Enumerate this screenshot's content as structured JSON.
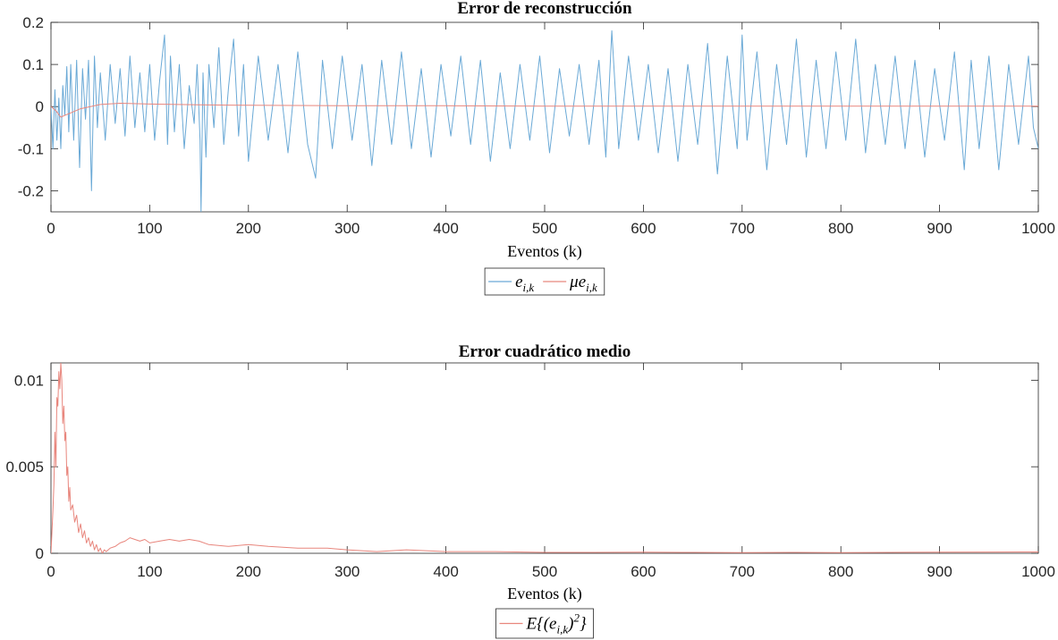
{
  "chart_data": [
    {
      "type": "line",
      "title": "Error de reconstrucción",
      "xlabel": "Eventos (k)",
      "ylabel": "",
      "xlim": [
        0,
        1000
      ],
      "ylim": [
        -0.25,
        0.2
      ],
      "xticks": [
        0,
        100,
        200,
        300,
        400,
        500,
        600,
        700,
        800,
        900,
        1000
      ],
      "yticks": [
        0.2,
        0.1,
        0,
        -0.1,
        -0.2
      ],
      "ytick_labels": [
        "0.2",
        "0.1",
        "0",
        "-0.1",
        "-0.2"
      ],
      "grid": false,
      "legend_position": "bottom-center",
      "series": [
        {
          "name": "e_{i,k}",
          "legend_main": "e",
          "legend_sub": "i,k",
          "color": "#6aa9d6",
          "description": "noisy error signal between about -0.17 and 0.18, single spike to -0.25 near k=152",
          "x": [
            0,
            2,
            4,
            6,
            8,
            10,
            12,
            14,
            16,
            18,
            20,
            23,
            26,
            29,
            32,
            35,
            38,
            41,
            44,
            47,
            50,
            55,
            60,
            65,
            70,
            75,
            80,
            85,
            90,
            95,
            100,
            105,
            110,
            115,
            118,
            121,
            125,
            130,
            135,
            140,
            145,
            148,
            151,
            152,
            154,
            157,
            160,
            165,
            170,
            175,
            180,
            185,
            190,
            195,
            200,
            210,
            220,
            230,
            240,
            250,
            260,
            268,
            275,
            285,
            295,
            305,
            315,
            325,
            335,
            345,
            355,
            365,
            375,
            385,
            395,
            405,
            415,
            425,
            435,
            445,
            455,
            465,
            475,
            485,
            495,
            505,
            515,
            525,
            535,
            545,
            555,
            562,
            568,
            575,
            585,
            595,
            605,
            615,
            625,
            635,
            645,
            655,
            665,
            675,
            685,
            695,
            700,
            705,
            715,
            725,
            735,
            745,
            755,
            765,
            775,
            785,
            795,
            805,
            815,
            825,
            835,
            845,
            855,
            865,
            875,
            885,
            895,
            905,
            915,
            925,
            932,
            940,
            950,
            960,
            970,
            980,
            990,
            995,
            1000
          ],
          "y": [
            0.0,
            -0.1,
            0.04,
            -0.08,
            0.02,
            -0.1,
            0.05,
            -0.02,
            0.095,
            -0.06,
            0.1,
            -0.08,
            0.11,
            -0.145,
            0.09,
            -0.03,
            0.11,
            -0.2,
            0.12,
            -0.05,
            0.08,
            -0.08,
            0.1,
            -0.04,
            0.09,
            -0.07,
            0.12,
            -0.05,
            0.08,
            -0.06,
            0.1,
            -0.08,
            0.06,
            0.17,
            -0.09,
            0.12,
            -0.06,
            0.1,
            -0.1,
            0.05,
            -0.04,
            0.1,
            -0.08,
            -0.25,
            0.08,
            -0.12,
            0.1,
            -0.05,
            0.14,
            -0.09,
            0.05,
            0.16,
            -0.07,
            0.1,
            -0.13,
            0.12,
            -0.08,
            0.1,
            -0.11,
            0.13,
            -0.09,
            -0.17,
            0.11,
            -0.1,
            0.12,
            -0.08,
            0.1,
            -0.14,
            0.11,
            -0.09,
            0.13,
            -0.1,
            0.09,
            -0.12,
            0.1,
            -0.07,
            0.12,
            -0.09,
            0.11,
            -0.13,
            0.08,
            -0.1,
            0.1,
            -0.08,
            0.12,
            -0.11,
            0.09,
            -0.07,
            0.1,
            -0.09,
            0.11,
            -0.12,
            0.18,
            -0.1,
            0.12,
            -0.08,
            0.1,
            -0.11,
            0.09,
            -0.13,
            0.1,
            -0.09,
            0.15,
            -0.16,
            0.12,
            -0.1,
            0.17,
            -0.08,
            0.13,
            -0.15,
            0.1,
            -0.09,
            0.16,
            -0.12,
            0.11,
            -0.1,
            0.13,
            -0.08,
            0.16,
            -0.11,
            0.1,
            -0.09,
            0.12,
            -0.1,
            0.11,
            -0.12,
            0.09,
            -0.08,
            0.13,
            -0.15,
            0.11,
            -0.1,
            0.12,
            -0.15,
            0.1,
            -0.09,
            0.12,
            -0.05,
            -0.1
          ]
        },
        {
          "name": "μe_{i,k}",
          "legend_main": "μe",
          "legend_sub": "i,k",
          "color": "#e8867d",
          "x": [
            0,
            5,
            10,
            15,
            20,
            25,
            30,
            40,
            50,
            70,
            100,
            150,
            200,
            300,
            400,
            500,
            600,
            700,
            800,
            900,
            1000
          ],
          "y": [
            0.0,
            -0.01,
            -0.025,
            -0.02,
            -0.015,
            -0.01,
            -0.005,
            0.0,
            0.005,
            0.008,
            0.006,
            0.004,
            0.003,
            0.002,
            0.002,
            0.001,
            0.001,
            0.001,
            0.001,
            0.001,
            0.001
          ]
        }
      ]
    },
    {
      "type": "line",
      "title": "Error cuadrático medio",
      "xlabel": "Eventos (k)",
      "ylabel": "",
      "xlim": [
        0,
        1000
      ],
      "ylim": [
        0,
        0.011
      ],
      "xticks": [
        0,
        100,
        200,
        300,
        400,
        500,
        600,
        700,
        800,
        900,
        1000
      ],
      "yticks": [
        0.01,
        0.005,
        0
      ],
      "ytick_labels": [
        "0.01",
        "0.005",
        "0"
      ],
      "grid": false,
      "legend_position": "bottom-center",
      "series": [
        {
          "name": "E{(e_{i,k})^2}",
          "legend_main": "E{(e",
          "legend_sub": "i,k",
          "legend_tail": ")",
          "legend_sup": "2",
          "legend_end": "}",
          "color": "#e8867d",
          "x": [
            0,
            2,
            3,
            4,
            5,
            6,
            7,
            8,
            9,
            10,
            11,
            12,
            13,
            14,
            15,
            16,
            17,
            18,
            19,
            20,
            22,
            24,
            26,
            28,
            30,
            32,
            34,
            36,
            38,
            40,
            42,
            44,
            46,
            48,
            50,
            52,
            54,
            56,
            58,
            60,
            65,
            70,
            75,
            80,
            85,
            90,
            95,
            100,
            110,
            120,
            130,
            140,
            150,
            160,
            180,
            200,
            220,
            250,
            280,
            300,
            330,
            360,
            400,
            450,
            500,
            550,
            600,
            650,
            700,
            750,
            800,
            850,
            900,
            950,
            1000
          ],
          "y": [
            0,
            0.0025,
            0.004,
            0.007,
            0.005,
            0.009,
            0.0085,
            0.0105,
            0.0095,
            0.011,
            0.01,
            0.0075,
            0.0085,
            0.0065,
            0.007,
            0.0045,
            0.005,
            0.003,
            0.0038,
            0.0025,
            0.0028,
            0.0018,
            0.0022,
            0.0012,
            0.0017,
            0.0009,
            0.0013,
            0.0006,
            0.0009,
            0.0004,
            0.0007,
            0.0002,
            0.0005,
            0.0001,
            0.0003,
            0.0,
            0.0002,
            0.0001,
            0.0002,
            0.0003,
            0.0004,
            0.0006,
            0.0007,
            0.0009,
            0.0008,
            0.0007,
            0.0008,
            0.0006,
            0.0007,
            0.0008,
            0.0007,
            0.0008,
            0.0007,
            0.0005,
            0.0004,
            0.0005,
            0.0004,
            0.0003,
            0.0003,
            0.0002,
            0.0001,
            0.0002,
            0.0001,
            0.0001,
            5e-05,
            5e-05,
            6e-05,
            5e-05,
            4e-05,
            5e-05,
            4e-05,
            5e-05,
            6e-05,
            7e-05,
            8e-05
          ]
        }
      ]
    }
  ]
}
